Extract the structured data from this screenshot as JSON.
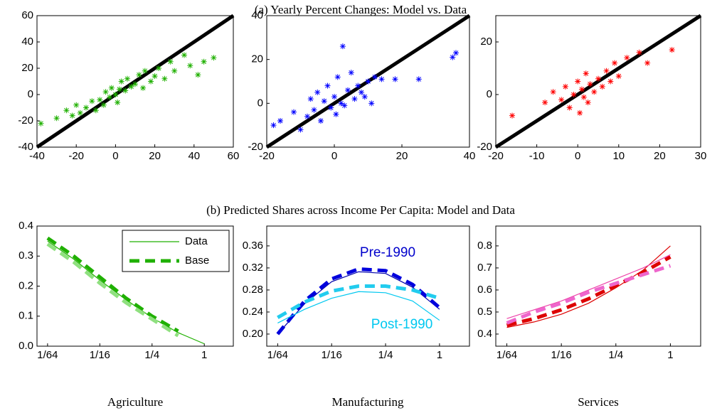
{
  "panel_titles": [
    "(a) Yearly Percent Changes: Model vs. Data",
    "(b) Predicted Shares across Income Per Capita: Model and Data"
  ],
  "captions": [
    "Agriculture",
    "Manufacturing",
    "Services"
  ],
  "chart_data": [
    {
      "type": "scatter",
      "diagonal": true,
      "xlim": [
        -40,
        60
      ],
      "ylim": [
        -40,
        60
      ],
      "xticks": [
        -40,
        -20,
        0,
        20,
        40,
        60
      ],
      "yticks": [
        -40,
        -20,
        0,
        20,
        40,
        60
      ],
      "series": [
        {
          "color": "#1fb000",
          "x": [
            -38,
            -30,
            -25,
            -22,
            -20,
            -18,
            -15,
            -12,
            -10,
            -8,
            -6,
            -5,
            -3,
            -2,
            0,
            1,
            2,
            3,
            5,
            6,
            8,
            10,
            12,
            14,
            15,
            18,
            20,
            22,
            25,
            28,
            30,
            35,
            38,
            42,
            45,
            50
          ],
          "values": [
            -22,
            -18,
            -12,
            -16,
            -8,
            -14,
            -10,
            -5,
            -12,
            -4,
            -8,
            2,
            -2,
            5,
            0,
            -6,
            4,
            10,
            3,
            12,
            6,
            8,
            15,
            5,
            18,
            10,
            14,
            20,
            12,
            25,
            18,
            30,
            22,
            15,
            25,
            28
          ]
        }
      ]
    },
    {
      "type": "scatter",
      "diagonal": true,
      "xlim": [
        -20,
        40
      ],
      "ylim": [
        -20,
        40
      ],
      "xticks": [
        -20,
        0,
        20,
        40
      ],
      "yticks": [
        -20,
        0,
        20,
        40
      ],
      "series": [
        {
          "color": "#0000ff",
          "x": [
            -18,
            -16,
            -12,
            -10,
            -8,
            -7,
            -6,
            -5,
            -4,
            -3,
            -2,
            -1,
            0,
            0.5,
            1,
            2,
            2.5,
            3,
            4,
            5,
            6,
            7,
            8,
            9,
            10,
            11,
            12,
            14,
            18,
            25,
            35,
            36
          ],
          "values": [
            -10,
            -8,
            -4,
            -12,
            -6,
            2,
            -3,
            5,
            -8,
            1,
            8,
            -2,
            3,
            -5,
            12,
            0,
            26,
            -1,
            6,
            14,
            2,
            8,
            5,
            3,
            10,
            0,
            12,
            11,
            11,
            11,
            21,
            23
          ]
        }
      ]
    },
    {
      "type": "scatter",
      "diagonal": true,
      "xlim": [
        -20,
        30
      ],
      "ylim": [
        -20,
        30
      ],
      "xticks": [
        -20,
        -10,
        0,
        10,
        20,
        30
      ],
      "yticks": [
        -20,
        0,
        20
      ],
      "series": [
        {
          "color": "#ff0000",
          "x": [
            -16,
            -8,
            -6,
            -4,
            -3,
            -2,
            -1,
            0,
            0.5,
            1,
            1.5,
            2,
            2.5,
            3,
            4,
            5,
            6,
            7,
            8,
            9,
            10,
            12,
            15,
            17,
            23
          ],
          "values": [
            -8,
            -3,
            1,
            -2,
            3,
            -5,
            0,
            5,
            -7,
            2,
            -1,
            8,
            -3,
            4,
            1,
            6,
            3,
            9,
            5,
            12,
            7,
            14,
            16,
            12,
            17
          ]
        }
      ]
    },
    {
      "type": "line",
      "xscale": "log2",
      "xlim": [
        0.0118,
        2.16
      ],
      "ylim": [
        0,
        0.4
      ],
      "xticks": [
        {
          "value": 0.015625,
          "label": "1/64"
        },
        {
          "value": 0.0625,
          "label": "1/16"
        },
        {
          "value": 0.25,
          "label": "1/4"
        },
        1
      ],
      "yticks": [
        {
          "value": 0,
          "label": "0.0"
        },
        0.1,
        0.2,
        0.3,
        0.4
      ],
      "legend": "northeast",
      "x": [
        0.015625,
        0.03125,
        0.0625,
        0.125,
        0.25,
        0.5,
        1
      ],
      "series": [
        {
          "name": "Data",
          "color": "#1fb000",
          "style": "thin",
          "values": [
            0.35,
            0.29,
            0.22,
            0.155,
            0.095,
            0.045,
            0.008
          ]
        },
        {
          "name": "Base",
          "color": "#1fb000",
          "style": "dashed",
          "values": [
            0.36,
            0.3,
            0.23,
            0.16,
            0.1,
            0.05,
            null
          ]
        },
        {
          "color": "#8fe07f",
          "style": "dashed",
          "values": [
            0.34,
            0.28,
            0.21,
            0.145,
            0.09,
            0.035,
            null
          ]
        }
      ]
    },
    {
      "type": "line",
      "xscale": "log2",
      "xlim": [
        0.0118,
        2.16
      ],
      "ylim": [
        0.178,
        0.396
      ],
      "xticks": [
        {
          "value": 0.015625,
          "label": "1/64"
        },
        {
          "value": 0.0625,
          "label": "1/16"
        },
        {
          "value": 0.25,
          "label": "1/4"
        },
        1
      ],
      "yticks": [
        {
          "value": 0.2,
          "label": "0.20"
        },
        0.24,
        0.28,
        0.32,
        0.36
      ],
      "annotations": [
        {
          "text": "Pre-1990",
          "color": "#0000cc"
        },
        {
          "text": "Post-1990",
          "color": "#00c8f0"
        }
      ],
      "x": [
        0.015625,
        0.03125,
        0.0625,
        0.125,
        0.25,
        0.5,
        1
      ],
      "series": [
        {
          "color": "#0000aa",
          "style": "thin",
          "values": [
            0.2,
            0.255,
            0.295,
            0.313,
            0.31,
            0.285,
            0.245
          ]
        },
        {
          "color": "#0000dd",
          "style": "dashed",
          "values": [
            0.2,
            0.26,
            0.3,
            0.318,
            0.315,
            0.29,
            0.248
          ]
        },
        {
          "color": "#00c8f0",
          "style": "thin",
          "values": [
            0.22,
            0.245,
            0.265,
            0.277,
            0.275,
            0.26,
            0.225
          ]
        },
        {
          "color": "#22ccee",
          "style": "dashed",
          "values": [
            0.23,
            0.258,
            0.278,
            0.287,
            0.287,
            0.28,
            0.265
          ]
        }
      ]
    },
    {
      "type": "line",
      "xscale": "log2",
      "xlim": [
        0.0118,
        2.16
      ],
      "ylim": [
        0.345,
        0.89
      ],
      "xticks": [
        {
          "value": 0.015625,
          "label": "1/64"
        },
        {
          "value": 0.0625,
          "label": "1/16"
        },
        {
          "value": 0.25,
          "label": "1/4"
        },
        1
      ],
      "yticks": [
        0.4,
        0.5,
        0.6,
        0.7,
        0.8
      ],
      "x": [
        0.015625,
        0.03125,
        0.0625,
        0.125,
        0.25,
        0.5,
        1
      ],
      "series": [
        {
          "color": "#dd0000",
          "style": "thin",
          "values": [
            0.43,
            0.455,
            0.49,
            0.54,
            0.61,
            0.69,
            0.8
          ]
        },
        {
          "color": "#dd0000",
          "style": "dashed",
          "values": [
            0.44,
            0.47,
            0.51,
            0.56,
            0.62,
            0.68,
            0.75
          ]
        },
        {
          "color": "#ee44aa",
          "style": "thin",
          "values": [
            0.47,
            0.51,
            0.55,
            0.6,
            0.65,
            0.7,
            0.76
          ]
        },
        {
          "color": "#ee66cc",
          "style": "dashed",
          "values": [
            0.45,
            0.5,
            0.54,
            0.59,
            0.63,
            0.67,
            0.71
          ]
        }
      ]
    }
  ]
}
